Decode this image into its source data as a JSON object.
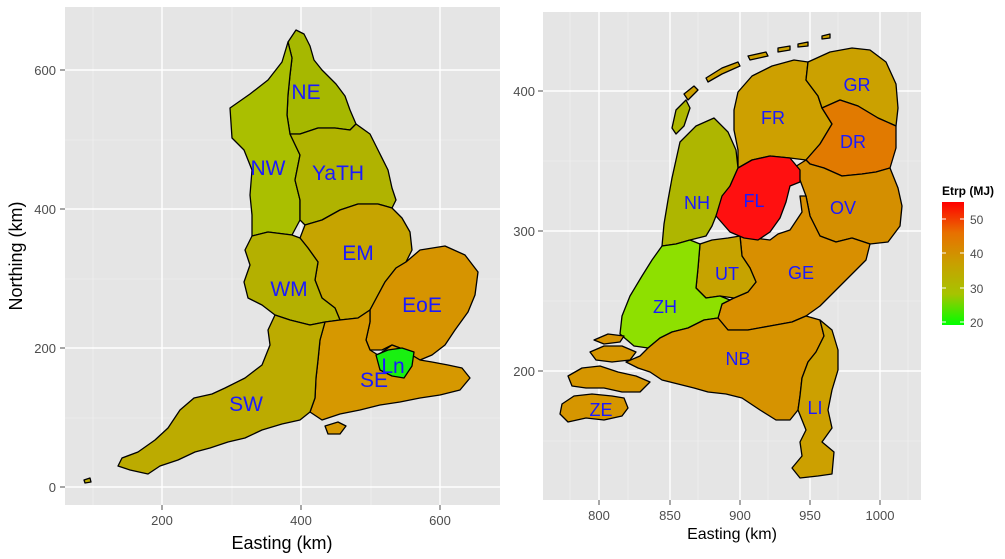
{
  "colors": {
    "panel_bg": "#e5e5e5",
    "grid": "#ffffff",
    "label": "#1a1aff",
    "outline": "#000000"
  },
  "left_map": {
    "xlabel": "Easting (km)",
    "ylabel": "Northing (km)",
    "x_ticks": [
      "200",
      "400",
      "600"
    ],
    "y_ticks": [
      "0",
      "200",
      "400",
      "600"
    ],
    "regions": [
      {
        "id": "NE",
        "label": "NE",
        "color": "#a6b800"
      },
      {
        "id": "NW",
        "label": "NW",
        "color": "#aabf00"
      },
      {
        "id": "YaTH",
        "label": "YaTH",
        "color": "#b0b300"
      },
      {
        "id": "EM",
        "label": "EM",
        "color": "#c6a400"
      },
      {
        "id": "WM",
        "label": "WM",
        "color": "#b4b000"
      },
      {
        "id": "EoE",
        "label": "EoE",
        "color": "#d69400"
      },
      {
        "id": "Ln",
        "label": "Ln",
        "color": "#19f011"
      },
      {
        "id": "SE",
        "label": "SE",
        "color": "#d69800"
      },
      {
        "id": "SW",
        "label": "SW",
        "color": "#bcab00"
      }
    ]
  },
  "right_map": {
    "xlabel": "Easting (km)",
    "x_ticks": [
      "800",
      "850",
      "900",
      "950",
      "1000"
    ],
    "y_ticks": [
      "200",
      "300",
      "400"
    ],
    "regions": [
      {
        "id": "GR",
        "label": "GR",
        "color": "#cba100"
      },
      {
        "id": "FR",
        "label": "FR",
        "color": "#cda000"
      },
      {
        "id": "DR",
        "label": "DR",
        "color": "#e17a00"
      },
      {
        "id": "NH",
        "label": "NH",
        "color": "#aeb600"
      },
      {
        "id": "FL",
        "label": "FL",
        "color": "#ff1010"
      },
      {
        "id": "OV",
        "label": "OV",
        "color": "#d48f00"
      },
      {
        "id": "UT",
        "label": "UT",
        "color": "#c6a300"
      },
      {
        "id": "GE",
        "label": "GE",
        "color": "#d88f00"
      },
      {
        "id": "ZH",
        "label": "ZH",
        "color": "#8ee000"
      },
      {
        "id": "NB",
        "label": "NB",
        "color": "#d69300"
      },
      {
        "id": "ZE",
        "label": "ZE",
        "color": "#d69600"
      },
      {
        "id": "LI",
        "label": "LI",
        "color": "#cca000"
      }
    ]
  },
  "legend": {
    "title": "Etrp (MJ)",
    "ticks": [
      "50",
      "40",
      "30",
      "20"
    ],
    "gradient_stops": [
      "#ff0000",
      "#e87000",
      "#c8a000",
      "#a6c400",
      "#00ff00"
    ]
  }
}
